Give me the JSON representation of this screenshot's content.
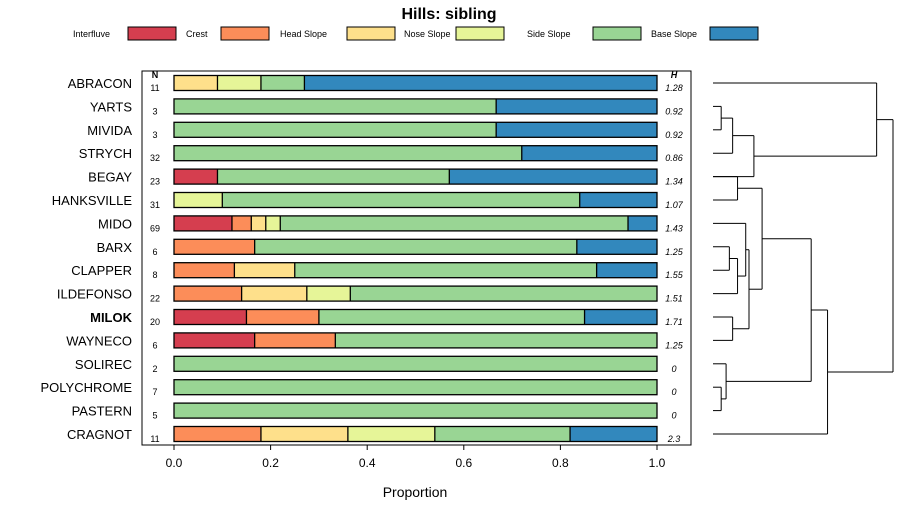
{
  "chart_data": {
    "type": "bar",
    "orientation": "horizontal",
    "stacked": true,
    "title": "Hills: sibling",
    "xlabel": "Proportion",
    "ylabel": "",
    "xlim": [
      0,
      1
    ],
    "xticks": [
      "0.0",
      "0.2",
      "0.4",
      "0.6",
      "0.8",
      "1.0"
    ],
    "n_header": "N",
    "h_header": "H",
    "highlighted_category": "MILOK",
    "legend": [
      {
        "name": "Interfluve",
        "color": "#D53E4F"
      },
      {
        "name": "Crest",
        "color": "#FC8D59"
      },
      {
        "name": "Head Slope",
        "color": "#FEE08B"
      },
      {
        "name": "Nose Slope",
        "color": "#E6F598"
      },
      {
        "name": "Side Slope",
        "color": "#99D594"
      },
      {
        "name": "Base Slope",
        "color": "#3288BD"
      }
    ],
    "rows": [
      {
        "label": "ABRACON",
        "n": "11",
        "h": "1.28",
        "values": [
          0,
          0,
          0.09,
          0.09,
          0.09,
          0.73
        ]
      },
      {
        "label": "YARTS",
        "n": "3",
        "h": "0.92",
        "values": [
          0,
          0,
          0,
          0,
          0.667,
          0.333
        ]
      },
      {
        "label": "MIVIDA",
        "n": "3",
        "h": "0.92",
        "values": [
          0,
          0,
          0,
          0,
          0.667,
          0.333
        ]
      },
      {
        "label": "STRYCH",
        "n": "32",
        "h": "0.86",
        "values": [
          0,
          0,
          0,
          0,
          0.72,
          0.28
        ]
      },
      {
        "label": "BEGAY",
        "n": "23",
        "h": "1.34",
        "values": [
          0.09,
          0,
          0,
          0,
          0.48,
          0.43
        ]
      },
      {
        "label": "HANKSVILLE",
        "n": "31",
        "h": "1.07",
        "values": [
          0,
          0,
          0,
          0.1,
          0.74,
          0.16
        ]
      },
      {
        "label": "MIDO",
        "n": "69",
        "h": "1.43",
        "values": [
          0.12,
          0.04,
          0.03,
          0.03,
          0.72,
          0.06
        ]
      },
      {
        "label": "BARX",
        "n": "6",
        "h": "1.25",
        "values": [
          0,
          0.167,
          0,
          0,
          0.667,
          0.167
        ]
      },
      {
        "label": "CLAPPER",
        "n": "8",
        "h": "1.55",
        "values": [
          0,
          0.125,
          0.125,
          0,
          0.625,
          0.125
        ]
      },
      {
        "label": "ILDEFONSO",
        "n": "22",
        "h": "1.51",
        "values": [
          0,
          0.14,
          0.135,
          0.09,
          0.635,
          0
        ]
      },
      {
        "label": "MILOK",
        "n": "20",
        "h": "1.71",
        "values": [
          0.15,
          0.15,
          0,
          0,
          0.55,
          0.15
        ]
      },
      {
        "label": "WAYNECO",
        "n": "6",
        "h": "1.25",
        "values": [
          0.167,
          0.167,
          0,
          0,
          0.667,
          0
        ]
      },
      {
        "label": "SOLIREC",
        "n": "2",
        "h": "0",
        "values": [
          0,
          0,
          0,
          0,
          1,
          0
        ]
      },
      {
        "label": "POLYCHROME",
        "n": "7",
        "h": "0",
        "values": [
          0,
          0,
          0,
          0,
          1,
          0
        ]
      },
      {
        "label": "PASTERN",
        "n": "5",
        "h": "0",
        "values": [
          0,
          0,
          0,
          0,
          1,
          0
        ]
      },
      {
        "label": "CRAGNOT",
        "n": "11",
        "h": "2.3",
        "values": [
          0,
          0.18,
          0.18,
          0.18,
          0.28,
          0.18
        ]
      }
    ],
    "dendrogram": [
      {
        "a": 1,
        "b": 2,
        "h": 0.05
      },
      {
        "a": 16,
        "b": 3,
        "h": 0.12
      },
      {
        "a": 17,
        "b": 4,
        "h": 0.25
      },
      {
        "a": 0,
        "b": 18,
        "h": 1.0
      },
      {
        "a": 4,
        "b": 5,
        "h": 0.15
      },
      {
        "a": 7,
        "b": 8,
        "h": 0.1
      },
      {
        "a": 9,
        "b": 21,
        "h": 0.15
      },
      {
        "a": 6,
        "b": 22,
        "h": 0.2
      },
      {
        "a": 10,
        "b": 11,
        "h": 0.12
      },
      {
        "a": 23,
        "b": 24,
        "h": 0.22
      },
      {
        "a": 20,
        "b": 25,
        "h": 0.3
      },
      {
        "a": 13,
        "b": 14,
        "h": 0.05
      },
      {
        "a": 12,
        "b": 27,
        "h": 0.08
      },
      {
        "a": 26,
        "b": 28,
        "h": 0.6
      },
      {
        "a": 29,
        "b": 15,
        "h": 0.7
      },
      {
        "a": 19,
        "b": 30,
        "h": 1.1
      }
    ]
  }
}
